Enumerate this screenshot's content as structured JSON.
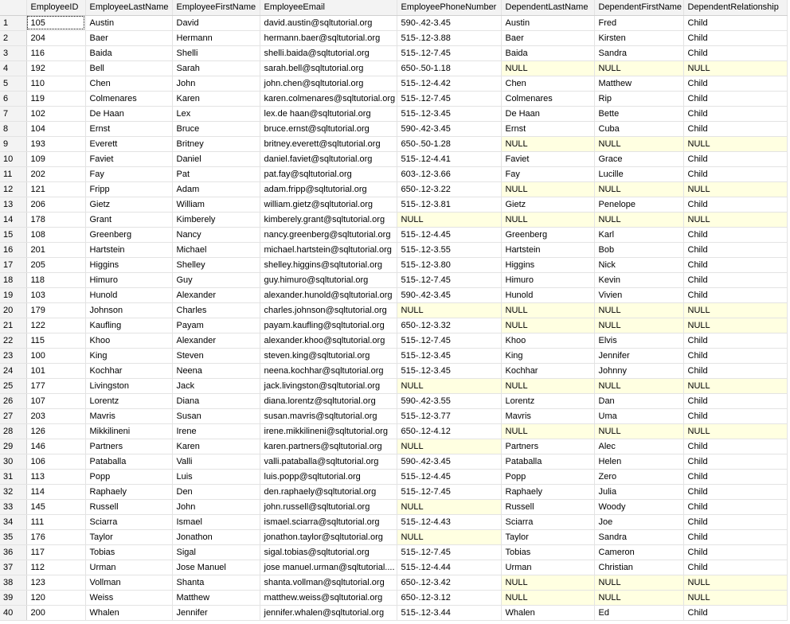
{
  "results_grid": {
    "columns": [
      "",
      "EmployeeID",
      "EmployeeLastName",
      "EmployeeFirstName",
      "EmployeeEmail",
      "EmployeePhoneNumber",
      "DependentLastName",
      "DependentFirstName",
      "DependentRelationship"
    ],
    "rows": [
      [
        "1",
        "105",
        "Austin",
        "David",
        "david.austin@sqltutorial.org",
        "590-.42-3.45",
        "Austin",
        "Fred",
        "Child"
      ],
      [
        "2",
        "204",
        "Baer",
        "Hermann",
        "hermann.baer@sqltutorial.org",
        "515-.12-3.88",
        "Baer",
        "Kirsten",
        "Child"
      ],
      [
        "3",
        "116",
        "Baida",
        "Shelli",
        "shelli.baida@sqltutorial.org",
        "515-.12-7.45",
        "Baida",
        "Sandra",
        "Child"
      ],
      [
        "4",
        "192",
        "Bell",
        "Sarah",
        "sarah.bell@sqltutorial.org",
        "650-.50-1.18",
        "NULL",
        "NULL",
        "NULL"
      ],
      [
        "5",
        "110",
        "Chen",
        "John",
        "john.chen@sqltutorial.org",
        "515-.12-4.42",
        "Chen",
        "Matthew",
        "Child"
      ],
      [
        "6",
        "119",
        "Colmenares",
        "Karen",
        "karen.colmenares@sqltutorial.org",
        "515-.12-7.45",
        "Colmenares",
        "Rip",
        "Child"
      ],
      [
        "7",
        "102",
        "De Haan",
        "Lex",
        "lex.de haan@sqltutorial.org",
        "515-.12-3.45",
        "De Haan",
        "Bette",
        "Child"
      ],
      [
        "8",
        "104",
        "Ernst",
        "Bruce",
        "bruce.ernst@sqltutorial.org",
        "590-.42-3.45",
        "Ernst",
        "Cuba",
        "Child"
      ],
      [
        "9",
        "193",
        "Everett",
        "Britney",
        "britney.everett@sqltutorial.org",
        "650-.50-1.28",
        "NULL",
        "NULL",
        "NULL"
      ],
      [
        "10",
        "109",
        "Faviet",
        "Daniel",
        "daniel.faviet@sqltutorial.org",
        "515-.12-4.41",
        "Faviet",
        "Grace",
        "Child"
      ],
      [
        "11",
        "202",
        "Fay",
        "Pat",
        "pat.fay@sqltutorial.org",
        "603-.12-3.66",
        "Fay",
        "Lucille",
        "Child"
      ],
      [
        "12",
        "121",
        "Fripp",
        "Adam",
        "adam.fripp@sqltutorial.org",
        "650-.12-3.22",
        "NULL",
        "NULL",
        "NULL"
      ],
      [
        "13",
        "206",
        "Gietz",
        "William",
        "william.gietz@sqltutorial.org",
        "515-.12-3.81",
        "Gietz",
        "Penelope",
        "Child"
      ],
      [
        "14",
        "178",
        "Grant",
        "Kimberely",
        "kimberely.grant@sqltutorial.org",
        "NULL",
        "NULL",
        "NULL",
        "NULL"
      ],
      [
        "15",
        "108",
        "Greenberg",
        "Nancy",
        "nancy.greenberg@sqltutorial.org",
        "515-.12-4.45",
        "Greenberg",
        "Karl",
        "Child"
      ],
      [
        "16",
        "201",
        "Hartstein",
        "Michael",
        "michael.hartstein@sqltutorial.org",
        "515-.12-3.55",
        "Hartstein",
        "Bob",
        "Child"
      ],
      [
        "17",
        "205",
        "Higgins",
        "Shelley",
        "shelley.higgins@sqltutorial.org",
        "515-.12-3.80",
        "Higgins",
        "Nick",
        "Child"
      ],
      [
        "18",
        "118",
        "Himuro",
        "Guy",
        "guy.himuro@sqltutorial.org",
        "515-.12-7.45",
        "Himuro",
        "Kevin",
        "Child"
      ],
      [
        "19",
        "103",
        "Hunold",
        "Alexander",
        "alexander.hunold@sqltutorial.org",
        "590-.42-3.45",
        "Hunold",
        "Vivien",
        "Child"
      ],
      [
        "20",
        "179",
        "Johnson",
        "Charles",
        "charles.johnson@sqltutorial.org",
        "NULL",
        "NULL",
        "NULL",
        "NULL"
      ],
      [
        "21",
        "122",
        "Kaufling",
        "Payam",
        "payam.kaufling@sqltutorial.org",
        "650-.12-3.32",
        "NULL",
        "NULL",
        "NULL"
      ],
      [
        "22",
        "115",
        "Khoo",
        "Alexander",
        "alexander.khoo@sqltutorial.org",
        "515-.12-7.45",
        "Khoo",
        "Elvis",
        "Child"
      ],
      [
        "23",
        "100",
        "King",
        "Steven",
        "steven.king@sqltutorial.org",
        "515-.12-3.45",
        "King",
        "Jennifer",
        "Child"
      ],
      [
        "24",
        "101",
        "Kochhar",
        "Neena",
        "neena.kochhar@sqltutorial.org",
        "515-.12-3.45",
        "Kochhar",
        "Johnny",
        "Child"
      ],
      [
        "25",
        "177",
        "Livingston",
        "Jack",
        "jack.livingston@sqltutorial.org",
        "NULL",
        "NULL",
        "NULL",
        "NULL"
      ],
      [
        "26",
        "107",
        "Lorentz",
        "Diana",
        "diana.lorentz@sqltutorial.org",
        "590-.42-3.55",
        "Lorentz",
        "Dan",
        "Child"
      ],
      [
        "27",
        "203",
        "Mavris",
        "Susan",
        "susan.mavris@sqltutorial.org",
        "515-.12-3.77",
        "Mavris",
        "Uma",
        "Child"
      ],
      [
        "28",
        "126",
        "Mikkilineni",
        "Irene",
        "irene.mikkilineni@sqltutorial.org",
        "650-.12-4.12",
        "NULL",
        "NULL",
        "NULL"
      ],
      [
        "29",
        "146",
        "Partners",
        "Karen",
        "karen.partners@sqltutorial.org",
        "NULL",
        "Partners",
        "Alec",
        "Child"
      ],
      [
        "30",
        "106",
        "Pataballa",
        "Valli",
        "valli.pataballa@sqltutorial.org",
        "590-.42-3.45",
        "Pataballa",
        "Helen",
        "Child"
      ],
      [
        "31",
        "113",
        "Popp",
        "Luis",
        "luis.popp@sqltutorial.org",
        "515-.12-4.45",
        "Popp",
        "Zero",
        "Child"
      ],
      [
        "32",
        "114",
        "Raphaely",
        "Den",
        "den.raphaely@sqltutorial.org",
        "515-.12-7.45",
        "Raphaely",
        "Julia",
        "Child"
      ],
      [
        "33",
        "145",
        "Russell",
        "John",
        "john.russell@sqltutorial.org",
        "NULL",
        "Russell",
        "Woody",
        "Child"
      ],
      [
        "34",
        "111",
        "Sciarra",
        "Ismael",
        "ismael.sciarra@sqltutorial.org",
        "515-.12-4.43",
        "Sciarra",
        "Joe",
        "Child"
      ],
      [
        "35",
        "176",
        "Taylor",
        "Jonathon",
        "jonathon.taylor@sqltutorial.org",
        "NULL",
        "Taylor",
        "Sandra",
        "Child"
      ],
      [
        "36",
        "117",
        "Tobias",
        "Sigal",
        "sigal.tobias@sqltutorial.org",
        "515-.12-7.45",
        "Tobias",
        "Cameron",
        "Child"
      ],
      [
        "37",
        "112",
        "Urman",
        "Jose Manuel",
        "jose manuel.urman@sqltutorial....",
        "515-.12-4.44",
        "Urman",
        "Christian",
        "Child"
      ],
      [
        "38",
        "123",
        "Vollman",
        "Shanta",
        "shanta.vollman@sqltutorial.org",
        "650-.12-3.42",
        "NULL",
        "NULL",
        "NULL"
      ],
      [
        "39",
        "120",
        "Weiss",
        "Matthew",
        "matthew.weiss@sqltutorial.org",
        "650-.12-3.12",
        "NULL",
        "NULL",
        "NULL"
      ],
      [
        "40",
        "200",
        "Whalen",
        "Jennifer",
        "jennifer.whalen@sqltutorial.org",
        "515-.12-3.44",
        "Whalen",
        "Ed",
        "Child"
      ]
    ],
    "null_value": "NULL",
    "null_cell_color": "#ffffe1",
    "header_color": "#f3f3f3",
    "selected_cell": "row 1, EmployeeID"
  }
}
